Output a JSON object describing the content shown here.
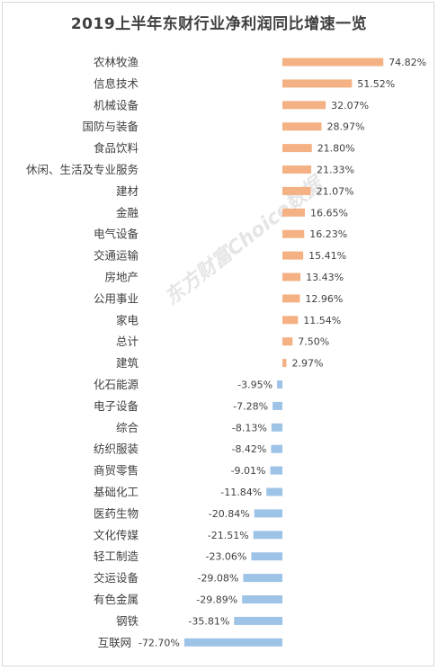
{
  "watermark": "东方财富Choice数据",
  "chart_data": {
    "type": "bar",
    "orientation": "horizontal",
    "title": "2019上半年东财行业净利润同比增速一览",
    "positive_color": "#F4B183",
    "negative_color": "#9DC3E6",
    "value_suffix": "%",
    "categories": [
      "农林牧渔",
      "信息技术",
      "机械设备",
      "国防与装备",
      "食品饮料",
      "休闲、生活及专业服务",
      "建材",
      "金融",
      "电气设备",
      "交通运输",
      "房地产",
      "公用事业",
      "家电",
      "总计",
      "建筑",
      "化石能源",
      "电子设备",
      "综合",
      "纺织服装",
      "商贸零售",
      "基础化工",
      "医药生物",
      "文化传媒",
      "轻工制造",
      "交运设备",
      "有色金属",
      "钢铁",
      "互联网"
    ],
    "values": [
      74.82,
      51.52,
      32.07,
      28.97,
      21.8,
      21.33,
      21.07,
      16.65,
      16.23,
      15.41,
      13.43,
      12.96,
      11.54,
      7.5,
      2.97,
      -3.95,
      -7.28,
      -8.13,
      -8.42,
      -9.01,
      -11.84,
      -20.84,
      -21.51,
      -23.06,
      -29.08,
      -29.89,
      -35.81,
      -72.7
    ],
    "value_labels": [
      "74.82%",
      "51.52%",
      "32.07%",
      "28.97%",
      "21.80%",
      "21.33%",
      "21.07%",
      "16.65%",
      "16.23%",
      "15.41%",
      "13.43%",
      "12.96%",
      "11.54%",
      "7.50%",
      "2.97%",
      "-3.95%",
      "-7.28%",
      "-8.13%",
      "-8.42%",
      "-9.01%",
      "-11.84%",
      "-20.84%",
      "-21.51%",
      "-23.06%",
      "-29.08%",
      "-29.89%",
      "-35.81%",
      "-72.70%"
    ]
  }
}
